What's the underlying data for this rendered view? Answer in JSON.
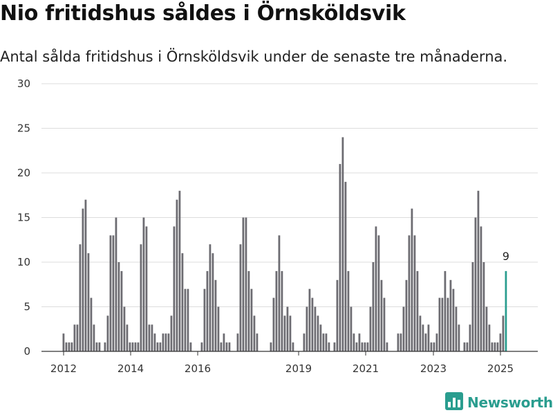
{
  "header": {
    "title": "Nio fritidshus såldes i Örnsköldsvik",
    "subtitle": "Antal sålda fritidshus i Örnsköldsvik under de senaste tre månaderna."
  },
  "branding": {
    "logo_text": "Newsworthy",
    "logo_icon": "bar-chart-icon",
    "color": "#2a9d8f"
  },
  "chart_data": {
    "type": "bar",
    "ylim": [
      0,
      30
    ],
    "y_ticks": [
      0,
      5,
      10,
      15,
      20,
      25,
      30
    ],
    "grid": true,
    "x_tick_labels": [
      "2012",
      "2014",
      "2016",
      "2019",
      "2021",
      "2023",
      "2025"
    ],
    "bar_color": "#6d6c72",
    "highlight_color": "#2a9d8f",
    "highlight_label": "9",
    "series": [
      {
        "values": [
          2,
          1,
          1,
          1,
          3,
          3,
          12,
          16,
          17,
          11,
          6,
          3,
          1,
          1,
          0,
          1,
          4,
          13,
          13,
          15,
          10,
          9,
          5,
          3,
          1,
          1,
          1,
          1,
          12,
          15,
          14,
          3,
          3,
          2,
          1,
          1,
          2,
          2,
          2,
          4,
          14,
          17,
          18,
          11,
          7,
          7,
          1,
          0,
          0,
          0,
          1,
          7,
          9,
          12,
          11,
          8,
          5,
          1,
          2,
          1,
          1,
          0,
          0,
          2,
          12,
          15,
          15,
          9,
          7,
          4,
          2,
          0,
          0,
          0,
          0,
          1,
          6,
          9,
          13,
          9,
          4,
          5,
          4,
          1,
          0,
          0,
          0,
          2,
          5,
          7,
          6,
          5,
          4,
          3,
          2,
          2,
          1,
          0,
          1,
          8,
          21,
          24,
          19,
          9,
          5,
          2,
          1,
          2,
          1,
          1,
          1,
          5,
          10,
          14,
          13,
          8,
          6,
          1,
          0,
          0,
          0,
          2,
          2,
          5,
          8,
          13,
          16,
          13,
          9,
          4,
          3,
          2,
          3,
          1,
          1,
          2,
          6,
          6,
          9,
          6,
          8,
          7,
          5,
          3,
          0,
          1,
          1,
          3,
          10,
          15,
          18,
          14,
          10,
          5,
          3,
          1,
          1,
          1,
          2,
          4,
          9
        ]
      }
    ]
  }
}
